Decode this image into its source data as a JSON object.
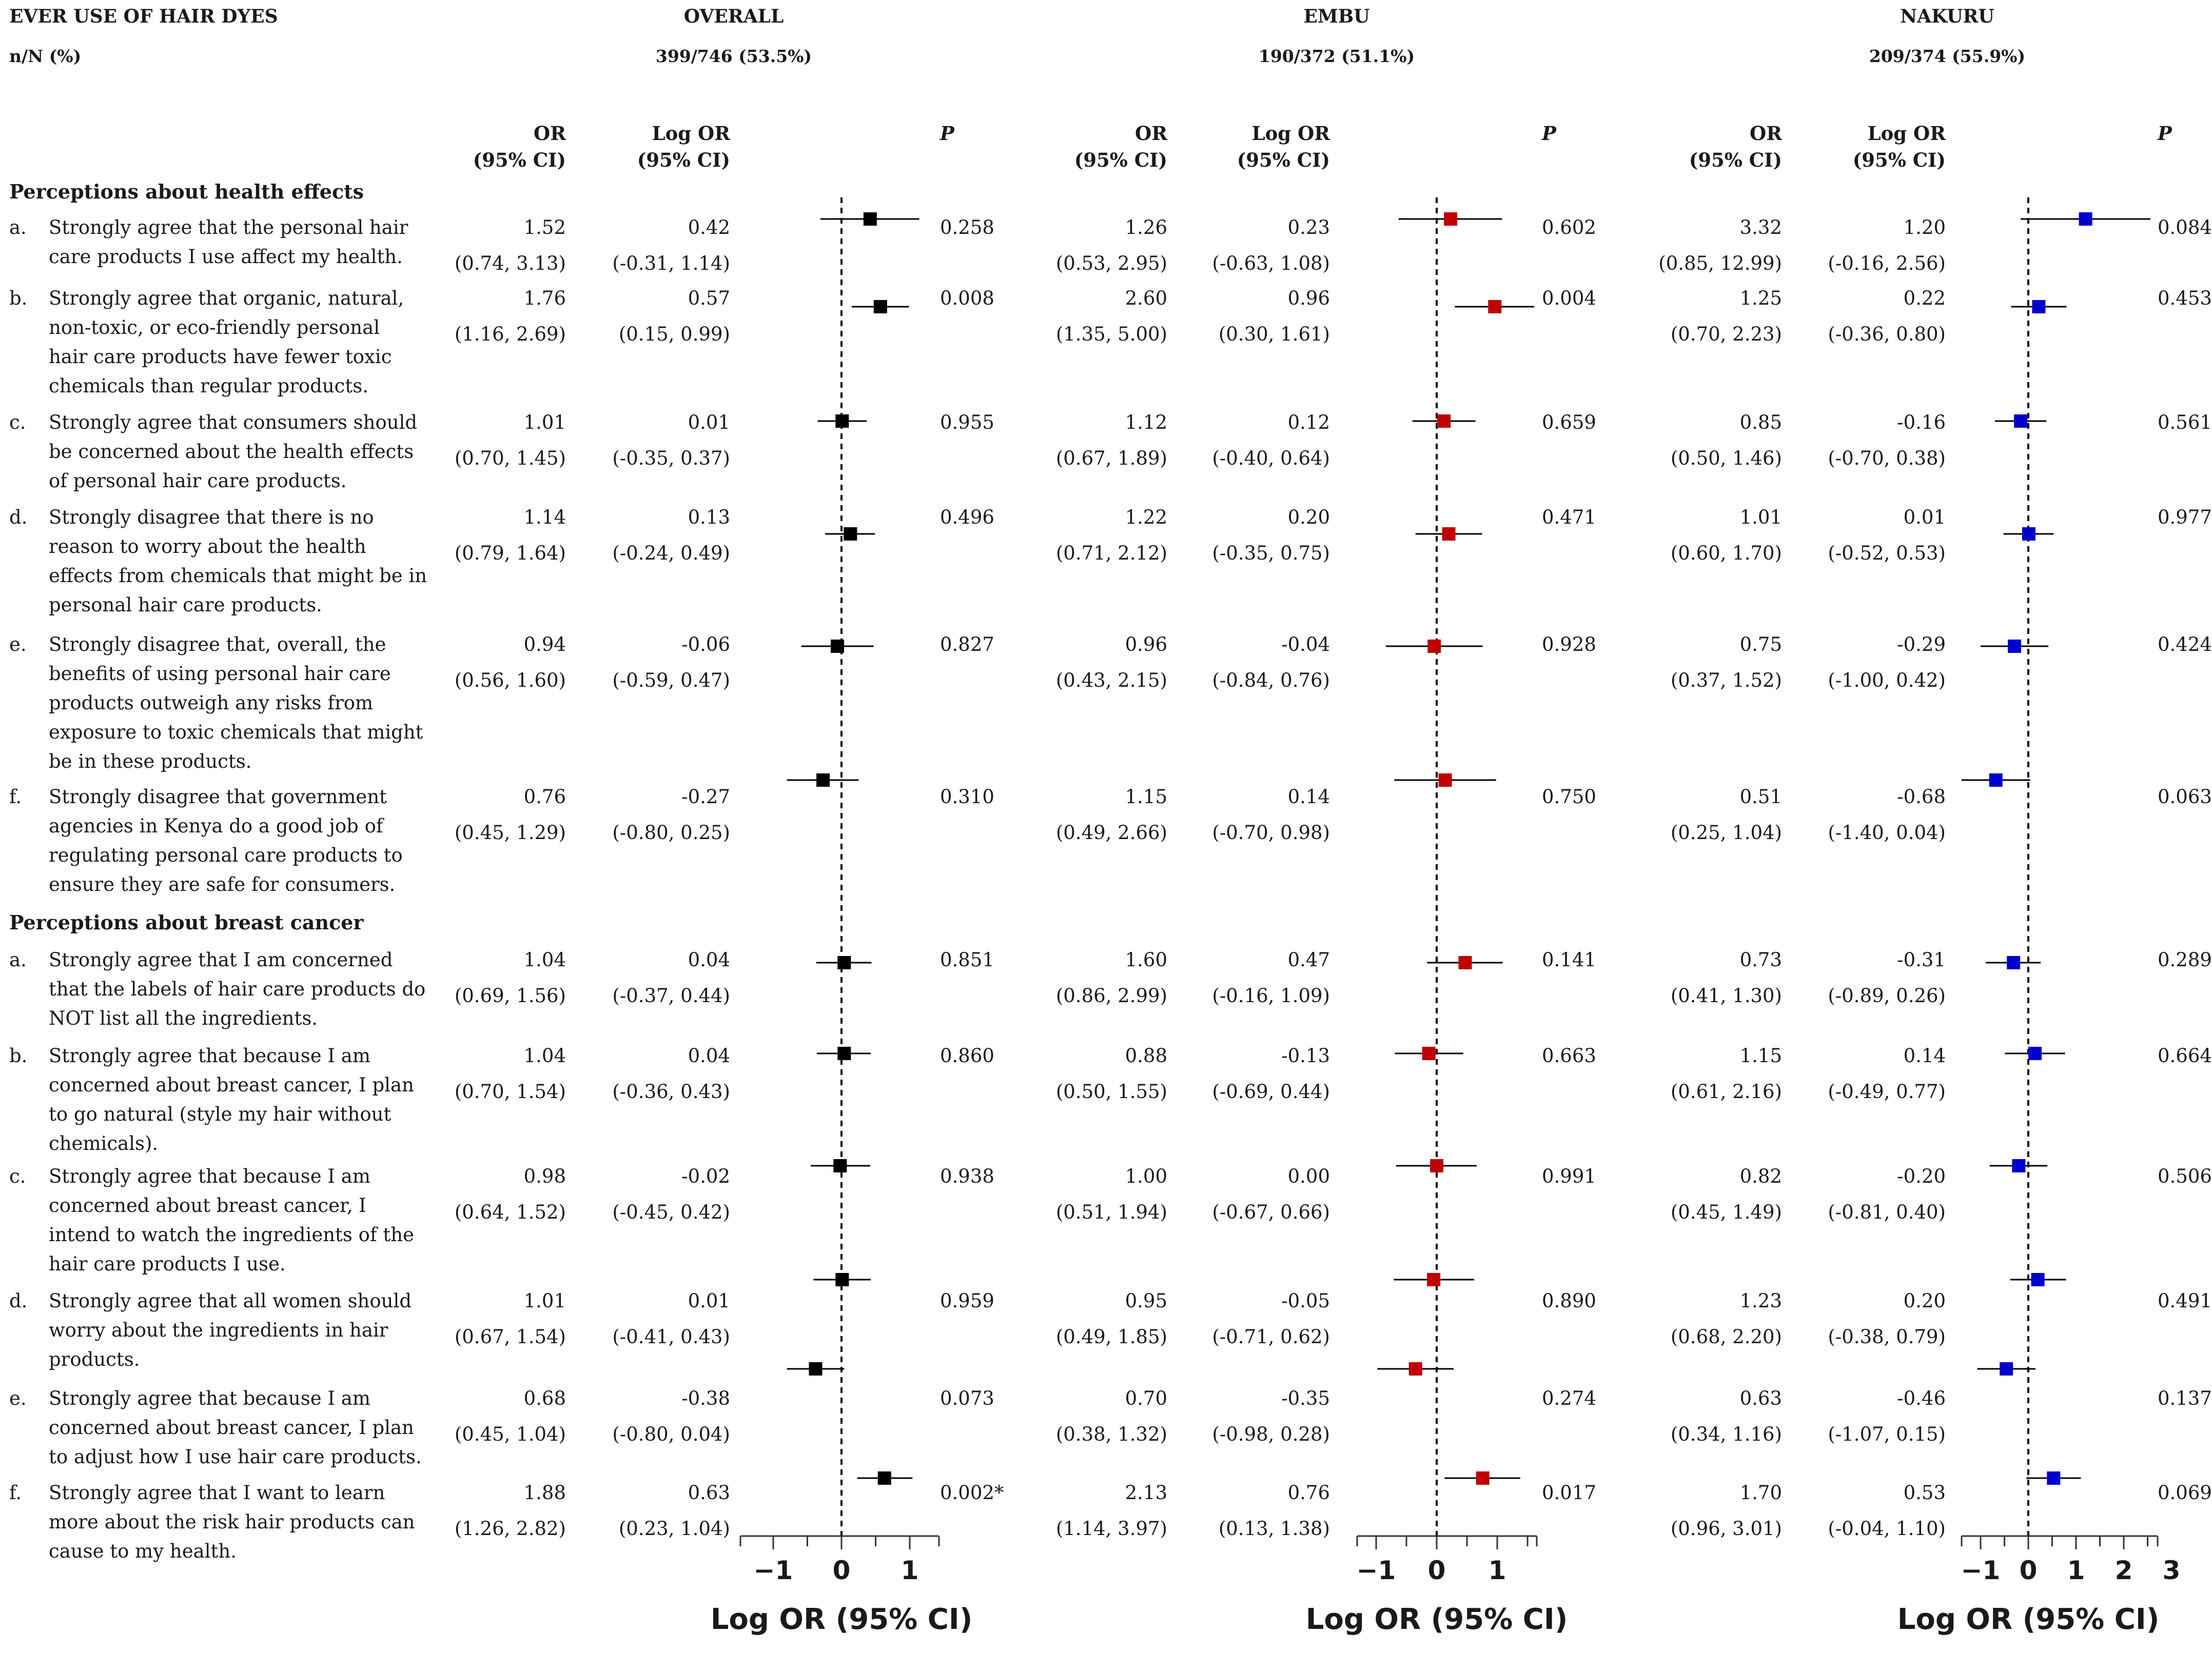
{
  "header": {
    "title": "EVER USE OF HAIR DYES",
    "nN_label": "n/N (%)",
    "groups": [
      {
        "name": "OVERALL",
        "count": "399/746 (53.5%)"
      },
      {
        "name": "EMBU",
        "count": "190/372 (51.1%)"
      },
      {
        "name": "NAKURU",
        "count": "209/374 (55.9%)"
      }
    ],
    "col_or_1": "OR",
    "col_or_2": "(95% CI)",
    "col_logor_1": "Log OR",
    "col_logor_2": "(95% CI)",
    "col_p": "P"
  },
  "sections": [
    {
      "title": "Perceptions about health effects",
      "items": [
        {
          "letter": "a.",
          "lines": [
            "Strongly agree that the personal hair",
            "care products I use affect my health."
          ]
        },
        {
          "letter": "b.",
          "lines": [
            "Strongly agree that organic, natural,",
            "non-toxic, or eco-friendly personal",
            "hair care products have fewer toxic",
            "chemicals than regular products."
          ]
        },
        {
          "letter": "c.",
          "lines": [
            "Strongly agree that consumers should",
            "be concerned about the health effects",
            "of personal hair care products."
          ]
        },
        {
          "letter": "d.",
          "lines": [
            "Strongly disagree that there is no",
            "reason to worry about the health",
            "effects from chemicals that might be in",
            "personal hair care products."
          ]
        },
        {
          "letter": "e.",
          "lines": [
            "Strongly disagree that, overall, the",
            "benefits of using personal hair care",
            "products outweigh any risks from",
            "exposure to toxic chemicals that might",
            "be in these products."
          ]
        },
        {
          "letter": "f.",
          "lines": [
            "Strongly disagree that government",
            "agencies in Kenya do a good job of",
            "regulating personal care products to",
            "ensure they are safe for consumers."
          ]
        }
      ]
    },
    {
      "title": "Perceptions about breast cancer",
      "items": [
        {
          "letter": "a.",
          "lines": [
            "Strongly agree that I am concerned",
            "that the labels of hair care products do",
            "NOT list all the ingredients."
          ]
        },
        {
          "letter": "b.",
          "lines": [
            "Strongly agree that because I am",
            "concerned about breast cancer, I plan",
            "to go natural (style my hair without",
            "chemicals)."
          ]
        },
        {
          "letter": "c.",
          "lines": [
            "Strongly agree that because I am",
            "concerned about breast cancer, I",
            "intend to watch the ingredients of the",
            "hair care products I use."
          ]
        },
        {
          "letter": "d.",
          "lines": [
            "Strongly agree that all women should",
            "worry about the ingredients in hair",
            "products."
          ]
        },
        {
          "letter": "e.",
          "lines": [
            "Strongly agree that because I am",
            "concerned about breast cancer, I plan",
            "to adjust how I use hair care products."
          ]
        },
        {
          "letter": "f.",
          "lines": [
            "Strongly agree that I want to learn",
            "more about the risk hair products can",
            "cause to my health."
          ]
        }
      ]
    }
  ],
  "table": {
    "overall": [
      {
        "or": "1.52",
        "or_ci": "(0.74, 3.13)",
        "lor": "0.42",
        "lor_ci": "(-0.31, 1.14)",
        "p": "0.258"
      },
      {
        "or": "1.76",
        "or_ci": "(1.16, 2.69)",
        "lor": "0.57",
        "lor_ci": "(0.15, 0.99)",
        "p": "0.008"
      },
      {
        "or": "1.01",
        "or_ci": "(0.70, 1.45)",
        "lor": "0.01",
        "lor_ci": "(-0.35, 0.37)",
        "p": "0.955"
      },
      {
        "or": "1.14",
        "or_ci": "(0.79, 1.64)",
        "lor": "0.13",
        "lor_ci": "(-0.24, 0.49)",
        "p": "0.496"
      },
      {
        "or": "0.94",
        "or_ci": "(0.56, 1.60)",
        "lor": "-0.06",
        "lor_ci": "(-0.59, 0.47)",
        "p": "0.827"
      },
      {
        "or": "0.76",
        "or_ci": "(0.45, 1.29)",
        "lor": "-0.27",
        "lor_ci": "(-0.80, 0.25)",
        "p": "0.310"
      },
      {
        "or": "1.04",
        "or_ci": "(0.69, 1.56)",
        "lor": "0.04",
        "lor_ci": "(-0.37, 0.44)",
        "p": "0.851"
      },
      {
        "or": "1.04",
        "or_ci": "(0.70, 1.54)",
        "lor": "0.04",
        "lor_ci": "(-0.36, 0.43)",
        "p": "0.860"
      },
      {
        "or": "0.98",
        "or_ci": "(0.64, 1.52)",
        "lor": "-0.02",
        "lor_ci": "(-0.45, 0.42)",
        "p": "0.938"
      },
      {
        "or": "1.01",
        "or_ci": "(0.67, 1.54)",
        "lor": "0.01",
        "lor_ci": "(-0.41, 0.43)",
        "p": "0.959"
      },
      {
        "or": "0.68",
        "or_ci": "(0.45, 1.04)",
        "lor": "-0.38",
        "lor_ci": "(-0.80, 0.04)",
        "p": "0.073"
      },
      {
        "or": "1.88",
        "or_ci": "(1.26, 2.82)",
        "lor": "0.63",
        "lor_ci": "(0.23, 1.04)",
        "p": "0.002*"
      }
    ],
    "embu": [
      {
        "or": "1.26",
        "or_ci": "(0.53, 2.95)",
        "lor": "0.23",
        "lor_ci": "(-0.63, 1.08)",
        "p": "0.602"
      },
      {
        "or": "2.60",
        "or_ci": "(1.35, 5.00)",
        "lor": "0.96",
        "lor_ci": "(0.30, 1.61)",
        "p": "0.004"
      },
      {
        "or": "1.12",
        "or_ci": "(0.67, 1.89)",
        "lor": "0.12",
        "lor_ci": "(-0.40, 0.64)",
        "p": "0.659"
      },
      {
        "or": "1.22",
        "or_ci": "(0.71, 2.12)",
        "lor": "0.20",
        "lor_ci": "(-0.35, 0.75)",
        "p": "0.471"
      },
      {
        "or": "0.96",
        "or_ci": "(0.43, 2.15)",
        "lor": "-0.04",
        "lor_ci": "(-0.84, 0.76)",
        "p": "0.928"
      },
      {
        "or": "1.15",
        "or_ci": "(0.49, 2.66)",
        "lor": "0.14",
        "lor_ci": "(-0.70, 0.98)",
        "p": "0.750"
      },
      {
        "or": "1.60",
        "or_ci": "(0.86, 2.99)",
        "lor": "0.47",
        "lor_ci": "(-0.16, 1.09)",
        "p": "0.141"
      },
      {
        "or": "0.88",
        "or_ci": "(0.50, 1.55)",
        "lor": "-0.13",
        "lor_ci": "(-0.69, 0.44)",
        "p": "0.663"
      },
      {
        "or": "1.00",
        "or_ci": "(0.51, 1.94)",
        "lor": "0.00",
        "lor_ci": "(-0.67, 0.66)",
        "p": "0.991"
      },
      {
        "or": "0.95",
        "or_ci": "(0.49, 1.85)",
        "lor": "-0.05",
        "lor_ci": "(-0.71, 0.62)",
        "p": "0.890"
      },
      {
        "or": "0.70",
        "or_ci": "(0.38, 1.32)",
        "lor": "-0.35",
        "lor_ci": "(-0.98, 0.28)",
        "p": "0.274"
      },
      {
        "or": "2.13",
        "or_ci": "(1.14, 3.97)",
        "lor": "0.76",
        "lor_ci": "(0.13, 1.38)",
        "p": "0.017"
      }
    ],
    "nakuru": [
      {
        "or": "3.32",
        "or_ci": "(0.85, 12.99)",
        "lor": "1.20",
        "lor_ci": "(-0.16, 2.56)",
        "p": "0.084"
      },
      {
        "or": "1.25",
        "or_ci": "(0.70, 2.23)",
        "lor": "0.22",
        "lor_ci": "(-0.36, 0.80)",
        "p": "0.453"
      },
      {
        "or": "0.85",
        "or_ci": "(0.50, 1.46)",
        "lor": "-0.16",
        "lor_ci": "(-0.70, 0.38)",
        "p": "0.561"
      },
      {
        "or": "1.01",
        "or_ci": "(0.60, 1.70)",
        "lor": "0.01",
        "lor_ci": "(-0.52, 0.53)",
        "p": "0.977"
      },
      {
        "or": "0.75",
        "or_ci": "(0.37, 1.52)",
        "lor": "-0.29",
        "lor_ci": "(-1.00, 0.42)",
        "p": "0.424"
      },
      {
        "or": "0.51",
        "or_ci": "(0.25, 1.04)",
        "lor": "-0.68",
        "lor_ci": "(-1.40, 0.04)",
        "p": "0.063"
      },
      {
        "or": "0.73",
        "or_ci": "(0.41, 1.30)",
        "lor": "-0.31",
        "lor_ci": "(-0.89, 0.26)",
        "p": "0.289"
      },
      {
        "or": "1.15",
        "or_ci": "(0.61, 2.16)",
        "lor": "0.14",
        "lor_ci": "(-0.49, 0.77)",
        "p": "0.664"
      },
      {
        "or": "0.82",
        "or_ci": "(0.45, 1.49)",
        "lor": "-0.20",
        "lor_ci": "(-0.81, 0.40)",
        "p": "0.506"
      },
      {
        "or": "1.23",
        "or_ci": "(0.68, 2.20)",
        "lor": "0.20",
        "lor_ci": "(-0.38, 0.79)",
        "p": "0.491"
      },
      {
        "or": "0.63",
        "or_ci": "(0.34, 1.16)",
        "lor": "-0.46",
        "lor_ci": "(-1.07, 0.15)",
        "p": "0.137"
      },
      {
        "or": "1.70",
        "or_ci": "(0.96, 3.01)",
        "lor": "0.53",
        "lor_ci": "(-0.04, 1.10)",
        "p": "0.069"
      }
    ]
  },
  "chart_data": [
    {
      "type": "scatter",
      "name": "OVERALL",
      "xlabel": "Log OR (95% CI)",
      "xticks": [
        -1,
        0,
        1
      ],
      "xticklabels": [
        "−1",
        "0",
        "1"
      ],
      "xlim": [
        -1.5,
        1.5
      ],
      "reference_line": 0,
      "color": "#000000",
      "points": [
        {
          "est": 0.42,
          "lo": -0.31,
          "hi": 1.14
        },
        {
          "est": 0.57,
          "lo": 0.15,
          "hi": 0.99
        },
        {
          "est": 0.01,
          "lo": -0.35,
          "hi": 0.37
        },
        {
          "est": 0.13,
          "lo": -0.24,
          "hi": 0.49
        },
        {
          "est": -0.06,
          "lo": -0.59,
          "hi": 0.47
        },
        {
          "est": -0.27,
          "lo": -0.8,
          "hi": 0.25
        },
        {
          "est": 0.04,
          "lo": -0.37,
          "hi": 0.44
        },
        {
          "est": 0.04,
          "lo": -0.36,
          "hi": 0.43
        },
        {
          "est": -0.02,
          "lo": -0.45,
          "hi": 0.42
        },
        {
          "est": 0.01,
          "lo": -0.41,
          "hi": 0.43
        },
        {
          "est": -0.38,
          "lo": -0.8,
          "hi": 0.04
        },
        {
          "est": 0.63,
          "lo": 0.23,
          "hi": 1.04
        }
      ]
    },
    {
      "type": "scatter",
      "name": "EMBU",
      "xlabel": "Log OR (95% CI)",
      "xticks": [
        -1,
        0,
        1
      ],
      "xticklabels": [
        "−1",
        "0",
        "1"
      ],
      "xlim": [
        -1.2,
        1.7
      ],
      "reference_line": 0,
      "color": "#c00000",
      "points": [
        {
          "est": 0.23,
          "lo": -0.63,
          "hi": 1.08
        },
        {
          "est": 0.96,
          "lo": 0.3,
          "hi": 1.61
        },
        {
          "est": 0.12,
          "lo": -0.4,
          "hi": 0.64
        },
        {
          "est": 0.2,
          "lo": -0.35,
          "hi": 0.75
        },
        {
          "est": -0.04,
          "lo": -0.84,
          "hi": 0.76
        },
        {
          "est": 0.14,
          "lo": -0.7,
          "hi": 0.98
        },
        {
          "est": 0.47,
          "lo": -0.16,
          "hi": 1.09
        },
        {
          "est": -0.13,
          "lo": -0.69,
          "hi": 0.44
        },
        {
          "est": 0.0,
          "lo": -0.67,
          "hi": 0.66
        },
        {
          "est": -0.05,
          "lo": -0.71,
          "hi": 0.62
        },
        {
          "est": -0.35,
          "lo": -0.98,
          "hi": 0.28
        },
        {
          "est": 0.76,
          "lo": 0.13,
          "hi": 1.38
        }
      ]
    },
    {
      "type": "scatter",
      "name": "NAKURU",
      "xlabel": "Log OR (95% CI)",
      "xticks": [
        -1,
        0,
        1,
        2,
        3
      ],
      "xticklabels": [
        "−1",
        "0",
        "1",
        "2",
        "3"
      ],
      "xlim": [
        -1.4,
        3.0
      ],
      "reference_line": 0,
      "color": "#0000cc",
      "points": [
        {
          "est": 1.2,
          "lo": -0.16,
          "hi": 2.56
        },
        {
          "est": 0.22,
          "lo": -0.36,
          "hi": 0.8
        },
        {
          "est": -0.16,
          "lo": -0.7,
          "hi": 0.38
        },
        {
          "est": 0.01,
          "lo": -0.52,
          "hi": 0.53
        },
        {
          "est": -0.29,
          "lo": -1.0,
          "hi": 0.42
        },
        {
          "est": -0.68,
          "lo": -1.4,
          "hi": 0.04
        },
        {
          "est": -0.31,
          "lo": -0.89,
          "hi": 0.26
        },
        {
          "est": 0.14,
          "lo": -0.49,
          "hi": 0.77
        },
        {
          "est": -0.2,
          "lo": -0.81,
          "hi": 0.4
        },
        {
          "est": 0.2,
          "lo": -0.38,
          "hi": 0.79
        },
        {
          "est": -0.46,
          "lo": -1.07,
          "hi": 0.15
        },
        {
          "est": 0.53,
          "lo": -0.04,
          "hi": 1.1
        }
      ]
    }
  ]
}
